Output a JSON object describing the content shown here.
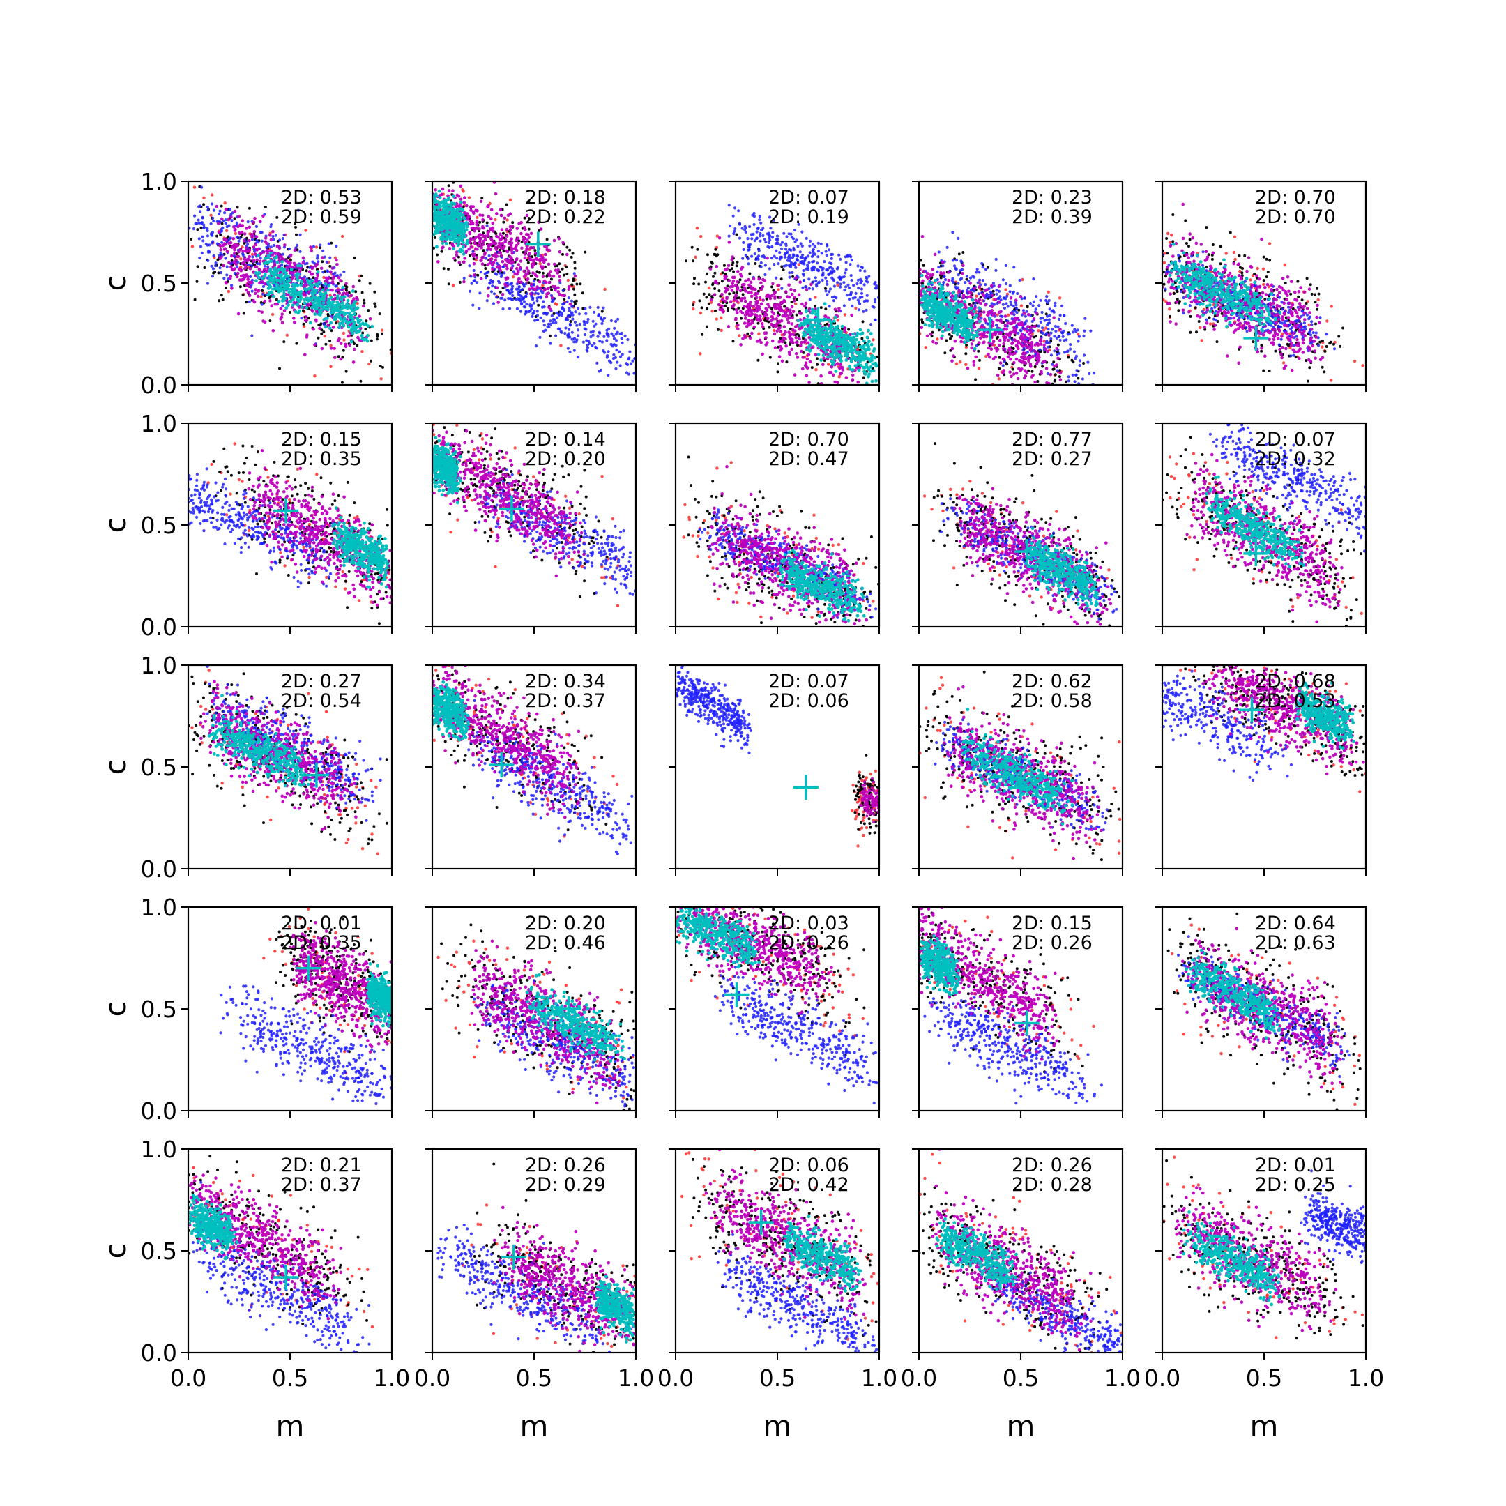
{
  "chart_data": {
    "type": "scatter",
    "grid_rows": 5,
    "grid_cols": 5,
    "xlabel": "m",
    "ylabel": "c",
    "xlim": [
      0,
      1
    ],
    "ylim": [
      0,
      1
    ],
    "xticks": [
      "0.0",
      "0.5",
      "1.0"
    ],
    "yticks": [
      "0.0",
      "0.5",
      "1.0"
    ],
    "grid": false,
    "colors": {
      "red": "#ff2a2a",
      "black": "#000000",
      "blue": "#2020ff",
      "magenta": "#bf00bf",
      "cyan": "#00bfbf",
      "marker": "#00bfbf"
    },
    "panels": [
      {
        "row": 0,
        "col": 0,
        "annotations": [
          "2D: 0.53",
          "2D: 0.59"
        ],
        "marker": [
          0.47,
          0.47
        ],
        "purple": {
          "cx": 0.5,
          "cy": 0.5,
          "slope": -0.55,
          "spread": 0.11
        },
        "blue": {
          "cx": 0.4,
          "cy": 0.6,
          "slope": -0.5,
          "spread": 0.1
        },
        "cyan": {
          "cx": 0.62,
          "cy": 0.42,
          "slope": -0.5,
          "spread": 0.05,
          "halfLen": 0.3
        }
      },
      {
        "row": 0,
        "col": 1,
        "annotations": [
          "2D: 0.18",
          "2D: 0.22"
        ],
        "marker": [
          0.52,
          0.69
        ],
        "purple": {
          "cx": 0.3,
          "cy": 0.7,
          "slope": -0.55,
          "spread": 0.1
        },
        "blue": {
          "cx": 0.6,
          "cy": 0.35,
          "slope": -0.55,
          "spread": 0.07
        },
        "cyan": {
          "cx": 0.08,
          "cy": 0.8,
          "slope": -0.5,
          "spread": 0.05,
          "halfLen": 0.1
        }
      },
      {
        "row": 0,
        "col": 2,
        "annotations": [
          "2D: 0.07",
          "2D: 0.19"
        ],
        "marker": [
          0.7,
          0.32
        ],
        "purple": {
          "cx": 0.55,
          "cy": 0.3,
          "slope": -0.5,
          "spread": 0.1
        },
        "blue": {
          "cx": 0.65,
          "cy": 0.6,
          "slope": -0.5,
          "spread": 0.07
        },
        "cyan": {
          "cx": 0.8,
          "cy": 0.2,
          "slope": -0.5,
          "spread": 0.05,
          "halfLen": 0.2
        }
      },
      {
        "row": 0,
        "col": 3,
        "annotations": [
          "2D: 0.23",
          "2D: 0.39"
        ],
        "marker": [
          0.35,
          0.27
        ],
        "purple": {
          "cx": 0.3,
          "cy": 0.3,
          "slope": -0.5,
          "spread": 0.1
        },
        "blue": {
          "cx": 0.45,
          "cy": 0.35,
          "slope": -0.5,
          "spread": 0.1
        },
        "cyan": {
          "cx": 0.15,
          "cy": 0.35,
          "slope": -0.5,
          "spread": 0.05,
          "halfLen": 0.15
        }
      },
      {
        "row": 0,
        "col": 4,
        "annotations": [
          "2D: 0.70",
          "2D: 0.70"
        ],
        "marker": [
          0.46,
          0.23
        ],
        "purple": {
          "cx": 0.4,
          "cy": 0.4,
          "slope": -0.45,
          "spread": 0.11
        },
        "blue": {
          "cx": 0.4,
          "cy": 0.4,
          "slope": -0.45,
          "spread": 0.06
        },
        "cyan": {
          "cx": 0.3,
          "cy": 0.45,
          "slope": -0.45,
          "spread": 0.05,
          "halfLen": 0.28
        }
      },
      {
        "row": 1,
        "col": 0,
        "annotations": [
          "2D: 0.15",
          "2D: 0.35"
        ],
        "marker": [
          0.48,
          0.57
        ],
        "purple": {
          "cx": 0.65,
          "cy": 0.45,
          "slope": -0.55,
          "spread": 0.1
        },
        "blue": {
          "cx": 0.3,
          "cy": 0.5,
          "slope": -0.45,
          "spread": 0.07
        },
        "cyan": {
          "cx": 0.85,
          "cy": 0.38,
          "slope": -0.5,
          "spread": 0.05,
          "halfLen": 0.15
        }
      },
      {
        "row": 1,
        "col": 1,
        "annotations": [
          "2D: 0.14",
          "2D: 0.20"
        ],
        "marker": [
          0.39,
          0.58
        ],
        "purple": {
          "cx": 0.35,
          "cy": 0.65,
          "slope": -0.55,
          "spread": 0.1
        },
        "blue": {
          "cx": 0.65,
          "cy": 0.45,
          "slope": -0.5,
          "spread": 0.07
        },
        "cyan": {
          "cx": 0.06,
          "cy": 0.78,
          "slope": -0.5,
          "spread": 0.05,
          "halfLen": 0.08
        }
      },
      {
        "row": 1,
        "col": 2,
        "annotations": [
          "2D: 0.70",
          "2D: 0.47"
        ],
        "marker": [
          0.6,
          0.2
        ],
        "purple": {
          "cx": 0.55,
          "cy": 0.3,
          "slope": -0.45,
          "spread": 0.11
        },
        "blue": {
          "cx": 0.55,
          "cy": 0.3,
          "slope": -0.45,
          "spread": 0.06
        },
        "cyan": {
          "cx": 0.72,
          "cy": 0.2,
          "slope": -0.45,
          "spread": 0.05,
          "halfLen": 0.22
        }
      },
      {
        "row": 1,
        "col": 3,
        "annotations": [
          "2D: 0.77",
          "2D: 0.27"
        ],
        "marker": [
          0.53,
          0.37
        ],
        "purple": {
          "cx": 0.55,
          "cy": 0.35,
          "slope": -0.5,
          "spread": 0.1
        },
        "blue": {
          "cx": 0.55,
          "cy": 0.35,
          "slope": -0.5,
          "spread": 0.06
        },
        "cyan": {
          "cx": 0.7,
          "cy": 0.27,
          "slope": -0.5,
          "spread": 0.05,
          "halfLen": 0.2
        }
      },
      {
        "row": 1,
        "col": 4,
        "annotations": [
          "2D: 0.07",
          "2D: 0.32"
        ],
        "marker": [
          0.46,
          0.36
        ],
        "purple": {
          "cx": 0.5,
          "cy": 0.45,
          "slope": -0.55,
          "spread": 0.11
        },
        "blue": {
          "cx": 0.68,
          "cy": 0.7,
          "slope": -0.5,
          "spread": 0.07
        },
        "cyan": {
          "cx": 0.45,
          "cy": 0.48,
          "slope": -0.55,
          "spread": 0.05,
          "halfLen": 0.25
        }
      },
      {
        "row": 2,
        "col": 0,
        "annotations": [
          "2D: 0.27",
          "2D: 0.54"
        ],
        "marker": [
          0.63,
          0.46
        ],
        "purple": {
          "cx": 0.45,
          "cy": 0.55,
          "slope": -0.5,
          "spread": 0.11
        },
        "blue": {
          "cx": 0.5,
          "cy": 0.6,
          "slope": -0.5,
          "spread": 0.08
        },
        "cyan": {
          "cx": 0.35,
          "cy": 0.58,
          "slope": -0.5,
          "spread": 0.05,
          "halfLen": 0.25
        }
      },
      {
        "row": 2,
        "col": 1,
        "annotations": [
          "2D: 0.34",
          "2D: 0.37"
        ],
        "marker": [
          0.34,
          0.51
        ],
        "purple": {
          "cx": 0.35,
          "cy": 0.65,
          "slope": -0.6,
          "spread": 0.1
        },
        "blue": {
          "cx": 0.6,
          "cy": 0.4,
          "slope": -0.55,
          "spread": 0.08
        },
        "cyan": {
          "cx": 0.08,
          "cy": 0.78,
          "slope": -0.5,
          "spread": 0.05,
          "halfLen": 0.1
        }
      },
      {
        "row": 2,
        "col": 2,
        "annotations": [
          "2D: 0.07",
          "2D: 0.06"
        ],
        "marker": [
          0.64,
          0.4
        ],
        "purple": {
          "cx": 0.96,
          "cy": 0.33,
          "slope": -0.3,
          "spread": 0.06,
          "halfLen": 0.08,
          "count": 110
        },
        "blue": {
          "cx": 0.18,
          "cy": 0.8,
          "slope": -0.6,
          "spread": 0.05,
          "halfLen": 0.22
        },
        "cyan": null
      },
      {
        "row": 2,
        "col": 3,
        "annotations": [
          "2D: 0.62",
          "2D: 0.58"
        ],
        "marker": [
          0.5,
          0.4
        ],
        "purple": {
          "cx": 0.5,
          "cy": 0.45,
          "slope": -0.45,
          "spread": 0.11
        },
        "blue": {
          "cx": 0.5,
          "cy": 0.45,
          "slope": -0.45,
          "spread": 0.06
        },
        "cyan": {
          "cx": 0.48,
          "cy": 0.46,
          "slope": -0.45,
          "spread": 0.05,
          "halfLen": 0.28
        }
      },
      {
        "row": 2,
        "col": 4,
        "annotations": [
          "2D: 0.68",
          "2D: 0.53"
        ],
        "marker": [
          0.44,
          0.78
        ],
        "purple": {
          "cx": 0.6,
          "cy": 0.8,
          "slope": -0.5,
          "spread": 0.1
        },
        "blue": {
          "cx": 0.2,
          "cy": 0.75,
          "slope": -0.5,
          "spread": 0.08
        },
        "cyan": {
          "cx": 0.8,
          "cy": 0.75,
          "slope": -0.5,
          "spread": 0.05,
          "halfLen": 0.15
        }
      },
      {
        "row": 3,
        "col": 0,
        "annotations": [
          "2D: 0.01",
          "2D: 0.35"
        ],
        "marker": [
          0.59,
          0.7
        ],
        "purple": {
          "cx": 0.75,
          "cy": 0.62,
          "slope": -0.55,
          "spread": 0.1,
          "halfLen": 0.3
        },
        "blue": {
          "cx": 0.6,
          "cy": 0.3,
          "slope": -0.5,
          "spread": 0.08
        },
        "cyan": {
          "cx": 0.95,
          "cy": 0.55,
          "slope": -0.5,
          "spread": 0.05,
          "halfLen": 0.08
        }
      },
      {
        "row": 3,
        "col": 1,
        "annotations": [
          "2D: 0.20",
          "2D: 0.46"
        ],
        "marker": [
          0.67,
          0.5
        ],
        "purple": {
          "cx": 0.55,
          "cy": 0.45,
          "slope": -0.5,
          "spread": 0.11
        },
        "blue": {
          "cx": 0.65,
          "cy": 0.3,
          "slope": -0.5,
          "spread": 0.08
        },
        "cyan": {
          "cx": 0.7,
          "cy": 0.42,
          "slope": -0.5,
          "spread": 0.05,
          "halfLen": 0.25
        }
      },
      {
        "row": 3,
        "col": 2,
        "annotations": [
          "2D: 0.03",
          "2D: 0.26"
        ],
        "marker": [
          0.3,
          0.57
        ],
        "purple": {
          "cx": 0.4,
          "cy": 0.8,
          "slope": -0.45,
          "spread": 0.1
        },
        "blue": {
          "cx": 0.6,
          "cy": 0.4,
          "slope": -0.5,
          "spread": 0.08
        },
        "cyan": {
          "cx": 0.2,
          "cy": 0.87,
          "slope": -0.45,
          "spread": 0.05,
          "halfLen": 0.22
        }
      },
      {
        "row": 3,
        "col": 3,
        "annotations": [
          "2D: 0.15",
          "2D: 0.26"
        ],
        "marker": [
          0.53,
          0.43
        ],
        "purple": {
          "cx": 0.3,
          "cy": 0.65,
          "slope": -0.6,
          "spread": 0.1
        },
        "blue": {
          "cx": 0.45,
          "cy": 0.3,
          "slope": -0.5,
          "spread": 0.08
        },
        "cyan": {
          "cx": 0.1,
          "cy": 0.72,
          "slope": -0.55,
          "spread": 0.05,
          "halfLen": 0.1
        }
      },
      {
        "row": 3,
        "col": 4,
        "annotations": [
          "2D: 0.64",
          "2D: 0.63"
        ],
        "marker": [
          0.5,
          0.5
        ],
        "purple": {
          "cx": 0.5,
          "cy": 0.5,
          "slope": -0.5,
          "spread": 0.11
        },
        "blue": {
          "cx": 0.5,
          "cy": 0.5,
          "slope": -0.5,
          "spread": 0.06
        },
        "cyan": {
          "cx": 0.35,
          "cy": 0.58,
          "slope": -0.5,
          "spread": 0.05,
          "halfLen": 0.25
        }
      },
      {
        "row": 4,
        "col": 0,
        "annotations": [
          "2D: 0.21",
          "2D: 0.37"
        ],
        "marker": [
          0.48,
          0.37
        ],
        "purple": {
          "cx": 0.35,
          "cy": 0.55,
          "slope": -0.55,
          "spread": 0.1
        },
        "blue": {
          "cx": 0.45,
          "cy": 0.3,
          "slope": -0.5,
          "spread": 0.08
        },
        "cyan": {
          "cx": 0.12,
          "cy": 0.62,
          "slope": -0.5,
          "spread": 0.05,
          "halfLen": 0.12
        }
      },
      {
        "row": 4,
        "col": 1,
        "annotations": [
          "2D: 0.26",
          "2D: 0.29"
        ],
        "marker": [
          0.4,
          0.47
        ],
        "purple": {
          "cx": 0.7,
          "cy": 0.3,
          "slope": -0.5,
          "spread": 0.1
        },
        "blue": {
          "cx": 0.45,
          "cy": 0.3,
          "slope": -0.5,
          "spread": 0.08
        },
        "cyan": {
          "cx": 0.9,
          "cy": 0.22,
          "slope": -0.5,
          "spread": 0.05,
          "halfLen": 0.1
        }
      },
      {
        "row": 4,
        "col": 2,
        "annotations": [
          "2D: 0.06",
          "2D: 0.42"
        ],
        "marker": [
          0.42,
          0.64
        ],
        "purple": {
          "cx": 0.55,
          "cy": 0.55,
          "slope": -0.5,
          "spread": 0.11
        },
        "blue": {
          "cx": 0.6,
          "cy": 0.22,
          "slope": -0.5,
          "spread": 0.07
        },
        "cyan": {
          "cx": 0.72,
          "cy": 0.47,
          "slope": -0.5,
          "spread": 0.05,
          "halfLen": 0.2
        }
      },
      {
        "row": 4,
        "col": 3,
        "annotations": [
          "2D: 0.26",
          "2D: 0.28"
        ],
        "marker": [
          0.4,
          0.37
        ],
        "purple": {
          "cx": 0.45,
          "cy": 0.4,
          "slope": -0.5,
          "spread": 0.11
        },
        "blue": {
          "cx": 0.75,
          "cy": 0.15,
          "slope": -0.5,
          "spread": 0.06
        },
        "cyan": {
          "cx": 0.28,
          "cy": 0.48,
          "slope": -0.5,
          "spread": 0.05,
          "halfLen": 0.2
        }
      },
      {
        "row": 4,
        "col": 4,
        "annotations": [
          "2D: 0.01",
          "2D: 0.25"
        ],
        "marker": [
          0.47,
          0.37
        ],
        "purple": {
          "cx": 0.45,
          "cy": 0.45,
          "slope": -0.5,
          "spread": 0.11
        },
        "blue": {
          "cx": 0.88,
          "cy": 0.62,
          "slope": -0.4,
          "spread": 0.06,
          "halfLen": 0.2
        },
        "cyan": {
          "cx": 0.35,
          "cy": 0.45,
          "slope": -0.5,
          "spread": 0.05,
          "halfLen": 0.25
        }
      }
    ]
  }
}
